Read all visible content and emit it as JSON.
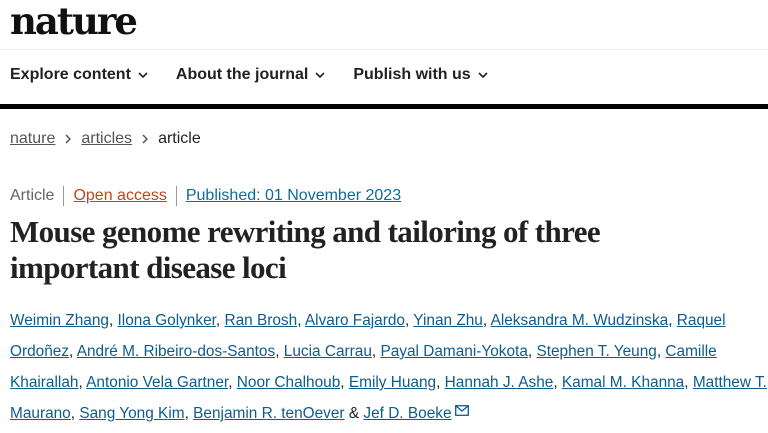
{
  "logo": "nature",
  "nav": [
    {
      "label": "Explore content"
    },
    {
      "label": "About the journal"
    },
    {
      "label": "Publish with us"
    }
  ],
  "breadcrumb": {
    "items": [
      "nature",
      "articles"
    ],
    "current": "article"
  },
  "meta": {
    "type": "Article",
    "access": "Open access",
    "published": "Published: 01 November 2023"
  },
  "title": "Mouse genome rewriting and tailoring of three important disease loci",
  "authors": [
    "Weimin Zhang",
    "Ilona Golynker",
    "Ran Brosh",
    "Alvaro Fajardo",
    "Yinan Zhu",
    "Aleksandra M. Wudzinska",
    "Raquel Ordoñez",
    "André M. Ribeiro-dos-Santos",
    "Lucia Carrau",
    "Payal Damani-Yokota",
    "Stephen T. Yeung",
    "Camille Khairallah",
    "Antonio Vela Gartner",
    "Noor Chalhoub",
    "Emily Huang",
    "Hannah J. Ashe",
    "Kamal M. Khanna",
    "Matthew T. Maurano",
    "Sang Yong Kim",
    "Benjamin R. tenOever",
    "Jef D. Boeke"
  ],
  "authors_last_sep": "&",
  "icons": {
    "nav_chevron": "chevron-down-icon",
    "crumb_sep": "chevron-right-icon",
    "corresponding": "mail-icon"
  },
  "colors": {
    "link": "#0e5c8c",
    "open_access": "#c0451a"
  }
}
